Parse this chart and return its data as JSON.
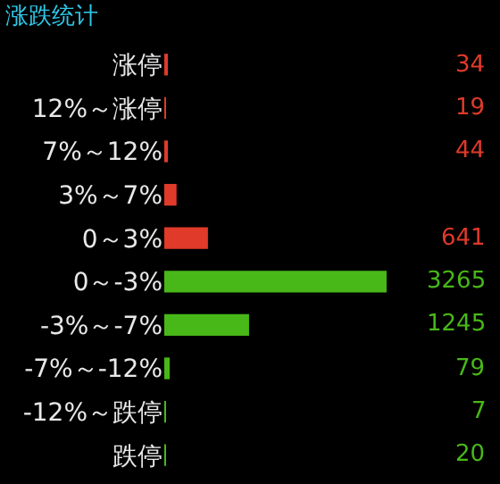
{
  "chart_data": {
    "type": "bar",
    "orientation": "horizontal",
    "title": "涨跌统计",
    "categories": [
      "涨停",
      "12%～涨停",
      "7%～12%",
      "3%～7%",
      "0～3%",
      "0～-3%",
      "-3%～-7%",
      "-7%～-12%",
      "-12%～跌停",
      "跌停"
    ],
    "values": [
      34,
      19,
      44,
      180,
      641,
      3265,
      1245,
      79,
      7,
      20
    ],
    "colors": [
      "#e03a2a",
      "#e03a2a",
      "#e03a2a",
      "#e03a2a",
      "#e03a2a",
      "#48b818",
      "#48b818",
      "#48b818",
      "#48b818",
      "#48b818"
    ],
    "value_labels": [
      "34",
      "19",
      "44",
      null,
      "641",
      "3265",
      "1245",
      "79",
      "7",
      "20"
    ],
    "grid": false,
    "legend": false
  }
}
